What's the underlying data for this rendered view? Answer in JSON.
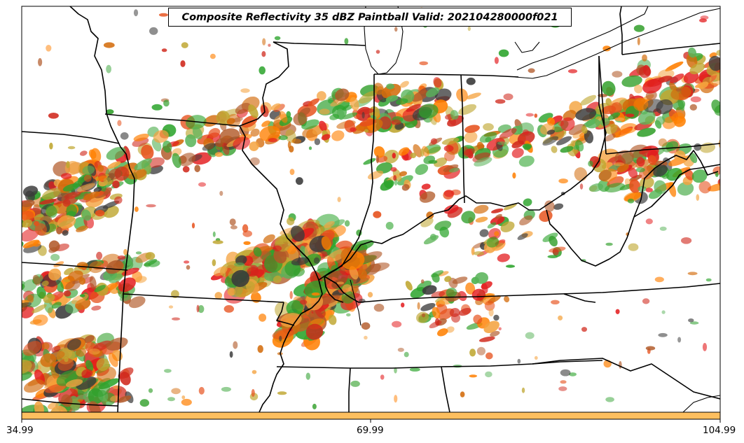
{
  "title": "Composite Reflectivity 35 dBZ Paintball Valid: 202104280000f021",
  "colorbar": {
    "color": "#fdbf5f",
    "ticks": [
      "34.99",
      "69.99",
      "104.99"
    ]
  },
  "member_colors": [
    "#e31a1c",
    "#ff7f00",
    "#b15928",
    "#33a02c",
    "#2ca42c",
    "#bfa630",
    "#3a3a3a",
    "#f4a340",
    "#d0281c",
    "#d36c0c",
    "#59b359",
    "#e6501b"
  ],
  "storm_bands": [
    {
      "region": "midwest-main-band",
      "intensity": "high"
    },
    {
      "region": "ohio-valley-band",
      "intensity": "medium"
    },
    {
      "region": "ohio-east-cluster",
      "intensity": "high"
    },
    {
      "region": "plains-sw-band",
      "intensity": "high"
    },
    {
      "region": "southern-illinois-core",
      "intensity": "very-high"
    },
    {
      "region": "kentucky-scatter",
      "intensity": "medium"
    },
    {
      "region": "arkansas-cluster",
      "intensity": "high"
    }
  ]
}
